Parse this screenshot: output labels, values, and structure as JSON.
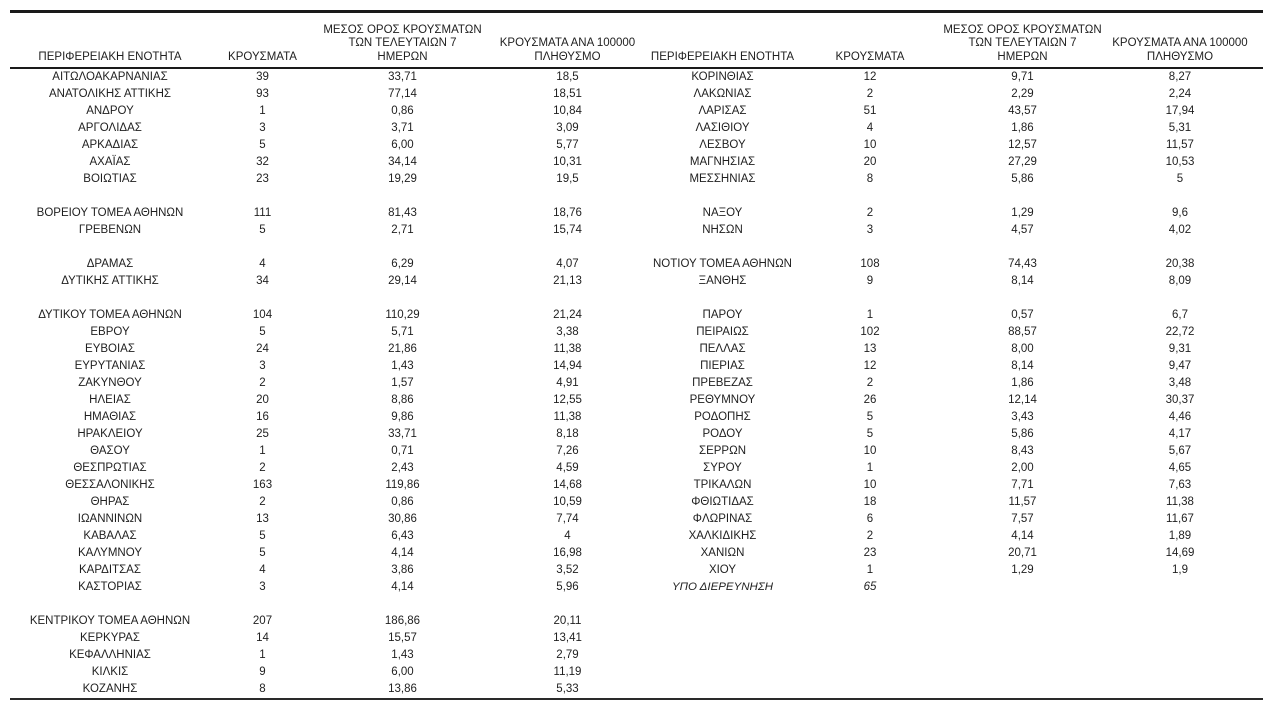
{
  "page": {
    "background": "#ffffff",
    "text_color": "#1f1f1f",
    "rule_color": "#1a1a1a"
  },
  "headers": {
    "region": "ΠΕΡΙΦΕΡΕΙΑΚΗ ΕΝΟΤΗΤΑ",
    "cases": "ΚΡΟΥΣΜΑΤΑ",
    "avg7": "ΜΕΣΟΣ ΟΡΟΣ ΚΡΟΥΣΜΑΤΩΝ\nΤΩΝ ΤΕΛΕΥΤΑΙΩΝ 7\nΗΜΕΡΩΝ",
    "per100k": "ΚΡΟΥΣΜΑΤΑ ΑΝΑ 100000\nΠΛΗΘΥΣΜΟ"
  },
  "left_table": {
    "rows": [
      [
        "ΑΙΤΩΛΟΑΚΑΡΝΑΝΙΑΣ",
        "39",
        "33,71",
        "18,5"
      ],
      [
        "ΑΝΑΤΟΛΙΚΗΣ ΑΤΤΙΚΗΣ",
        "93",
        "77,14",
        "18,51"
      ],
      [
        "ΑΝΔΡΟΥ",
        "1",
        "0,86",
        "10,84"
      ],
      [
        "ΑΡΓΟΛΙΔΑΣ",
        "3",
        "3,71",
        "3,09"
      ],
      [
        "ΑΡΚΑΔΙΑΣ",
        "5",
        "6,00",
        "5,77"
      ],
      [
        "ΑΧΑΪΑΣ",
        "32",
        "34,14",
        "10,31"
      ],
      [
        "ΒΟΙΩΤΙΑΣ",
        "23",
        "19,29",
        "19,5"
      ],
      null,
      [
        "ΒΟΡΕΙΟΥ ΤΟΜΕΑ ΑΘΗΝΩΝ",
        "111",
        "81,43",
        "18,76"
      ],
      [
        "ΓΡΕΒΕΝΩΝ",
        "5",
        "2,71",
        "15,74"
      ],
      null,
      [
        "ΔΡΑΜΑΣ",
        "4",
        "6,29",
        "4,07"
      ],
      [
        "ΔΥΤΙΚΗΣ ΑΤΤΙΚΗΣ",
        "34",
        "29,14",
        "21,13"
      ],
      null,
      [
        "ΔΥΤΙΚΟΥ ΤΟΜΕΑ ΑΘΗΝΩΝ",
        "104",
        "110,29",
        "21,24"
      ],
      [
        "ΕΒΡΟΥ",
        "5",
        "5,71",
        "3,38"
      ],
      [
        "ΕΥΒΟΙΑΣ",
        "24",
        "21,86",
        "11,38"
      ],
      [
        "ΕΥΡΥΤΑΝΙΑΣ",
        "3",
        "1,43",
        "14,94"
      ],
      [
        "ΖΑΚΥΝΘΟΥ",
        "2",
        "1,57",
        "4,91"
      ],
      [
        "ΗΛΕΙΑΣ",
        "20",
        "8,86",
        "12,55"
      ],
      [
        "ΗΜΑΘΙΑΣ",
        "16",
        "9,86",
        "11,38"
      ],
      [
        "ΗΡΑΚΛΕΙΟΥ",
        "25",
        "33,71",
        "8,18"
      ],
      [
        "ΘΑΣΟΥ",
        "1",
        "0,71",
        "7,26"
      ],
      [
        "ΘΕΣΠΡΩΤΙΑΣ",
        "2",
        "2,43",
        "4,59"
      ],
      [
        "ΘΕΣΣΑΛΟΝΙΚΗΣ",
        "163",
        "119,86",
        "14,68"
      ],
      [
        "ΘΗΡΑΣ",
        "2",
        "0,86",
        "10,59"
      ],
      [
        "ΙΩΑΝΝΙΝΩΝ",
        "13",
        "30,86",
        "7,74"
      ],
      [
        "ΚΑΒΑΛΑΣ",
        "5",
        "6,43",
        "4"
      ],
      [
        "ΚΑΛΥΜΝΟΥ",
        "5",
        "4,14",
        "16,98"
      ],
      [
        "ΚΑΡΔΙΤΣΑΣ",
        "4",
        "3,86",
        "3,52"
      ],
      [
        "ΚΑΣΤΟΡΙΑΣ",
        "3",
        "4,14",
        "5,96"
      ],
      null,
      [
        "ΚΕΝΤΡΙΚΟΥ ΤΟΜΕΑ ΑΘΗΝΩΝ",
        "207",
        "186,86",
        "20,11"
      ],
      [
        "ΚΕΡΚΥΡΑΣ",
        "14",
        "15,57",
        "13,41"
      ],
      [
        "ΚΕΦΑΛΛΗΝΙΑΣ",
        "1",
        "1,43",
        "2,79"
      ],
      [
        "ΚΙΛΚΙΣ",
        "9",
        "6,00",
        "11,19"
      ],
      [
        "ΚΟΖΑΝΗΣ",
        "8",
        "13,86",
        "5,33"
      ]
    ]
  },
  "right_table": {
    "italic_last_row": true,
    "rows": [
      [
        "ΚΟΡΙΝΘΙΑΣ",
        "12",
        "9,71",
        "8,27"
      ],
      [
        "ΛΑΚΩΝΙΑΣ",
        "2",
        "2,29",
        "2,24"
      ],
      [
        "ΛΑΡΙΣΑΣ",
        "51",
        "43,57",
        "17,94"
      ],
      [
        "ΛΑΣΙΘΙΟΥ",
        "4",
        "1,86",
        "5,31"
      ],
      [
        "ΛΕΣΒΟΥ",
        "10",
        "12,57",
        "11,57"
      ],
      [
        "ΜΑΓΝΗΣΙΑΣ",
        "20",
        "27,29",
        "10,53"
      ],
      [
        "ΜΕΣΣΗΝΙΑΣ",
        "8",
        "5,86",
        "5"
      ],
      null,
      [
        "ΝΑΞΟΥ",
        "2",
        "1,29",
        "9,6"
      ],
      [
        "ΝΗΣΩΝ",
        "3",
        "4,57",
        "4,02"
      ],
      null,
      [
        "ΝΟΤΙΟΥ ΤΟΜΕΑ ΑΘΗΝΩΝ",
        "108",
        "74,43",
        "20,38"
      ],
      [
        "ΞΑΝΘΗΣ",
        "9",
        "8,14",
        "8,09"
      ],
      null,
      [
        "ΠΑΡΟΥ",
        "1",
        "0,57",
        "6,7"
      ],
      [
        "ΠΕΙΡΑΙΩΣ",
        "102",
        "88,57",
        "22,72"
      ],
      [
        "ΠΕΛΛΑΣ",
        "13",
        "8,00",
        "9,31"
      ],
      [
        "ΠΙΕΡΙΑΣ",
        "12",
        "8,14",
        "9,47"
      ],
      [
        "ΠΡΕΒΕΖΑΣ",
        "2",
        "1,86",
        "3,48"
      ],
      [
        "ΡΕΘΥΜΝΟΥ",
        "26",
        "12,14",
        "30,37"
      ],
      [
        "ΡΟΔΟΠΗΣ",
        "5",
        "3,43",
        "4,46"
      ],
      [
        "ΡΟΔΟΥ",
        "5",
        "5,86",
        "4,17"
      ],
      [
        "ΣΕΡΡΩΝ",
        "10",
        "8,43",
        "5,67"
      ],
      [
        "ΣΥΡΟΥ",
        "1",
        "2,00",
        "4,65"
      ],
      [
        "ΤΡΙΚΑΛΩΝ",
        "10",
        "7,71",
        "7,63"
      ],
      [
        "ΦΘΙΩΤΙΔΑΣ",
        "18",
        "11,57",
        "11,38"
      ],
      [
        "ΦΛΩΡΙΝΑΣ",
        "6",
        "7,57",
        "11,67"
      ],
      [
        "ΧΑΛΚΙΔΙΚΗΣ",
        "2",
        "4,14",
        "1,89"
      ],
      [
        "ΧΑΝΙΩΝ",
        "23",
        "20,71",
        "14,69"
      ],
      [
        "ΧΙΟΥ",
        "1",
        "1,29",
        "1,9"
      ],
      [
        "ΥΠΟ ΔΙΕΡΕΥΝΗΣΗ",
        "65",
        "",
        ""
      ]
    ]
  }
}
